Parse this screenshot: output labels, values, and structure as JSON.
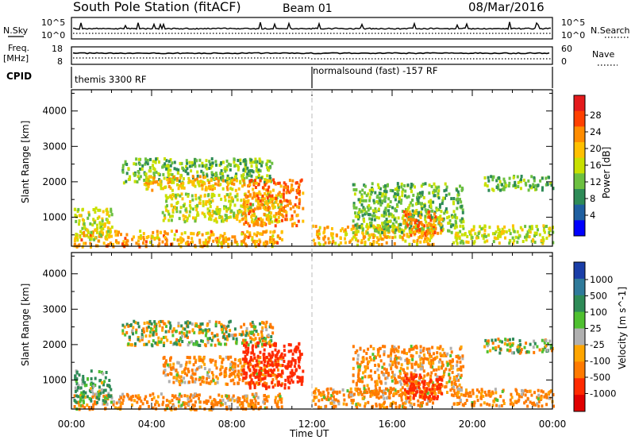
{
  "header": {
    "station": "South Pole Station (fitACF)",
    "beam": "Beam 01",
    "date": "08/Mar/2016"
  },
  "nsky_panel": {
    "left_label": "N.Sky",
    "left_ticks": [
      "10^5",
      "10^0"
    ],
    "right_label": "N.Search",
    "right_ticks": [
      "10^5",
      "10^0"
    ]
  },
  "freq_panel": {
    "left_label_1": "Freq.",
    "left_label_2": "[MHz]",
    "left_ticks": [
      "18",
      "8"
    ],
    "right_label": "Nave",
    "right_ticks": [
      "60",
      "0"
    ]
  },
  "cpid_panel": {
    "label": "CPID",
    "mode_1": "themis 3300 RF",
    "mode_2": "normalsound (fast) -157 RF"
  },
  "colorbars": {
    "power": {
      "label": "Power [dB]",
      "ticks": [
        "28",
        "24",
        "20",
        "16",
        "12",
        "8",
        "4"
      ],
      "colors": [
        "#e41a1c",
        "#ff4000",
        "#ff8c00",
        "#ffc000",
        "#c8e000",
        "#6cc040",
        "#2e8b57",
        "#1f5fa0",
        "#0000ff"
      ]
    },
    "velocity": {
      "label": "Velocity [m s^-1]",
      "ticks": [
        "1000",
        "500",
        "100",
        "25",
        "-25",
        "-100",
        "-500",
        "-1000"
      ],
      "colors": [
        "#1a3ea8",
        "#2f7a9a",
        "#2e8b57",
        "#4fc030",
        "#b0b0b0",
        "#ffa500",
        "#ff7a00",
        "#ff2a00",
        "#e00000"
      ]
    }
  },
  "axes": {
    "ylabel": "Slant Range [km]",
    "yticks": [
      "4000",
      "3000",
      "2000",
      "1000"
    ],
    "xticks": [
      "00:00",
      "04:00",
      "08:00",
      "12:00",
      "16:00",
      "20:00",
      "00:00"
    ],
    "xlabel": "Time UT"
  },
  "chart_data": {
    "type": "heatmap",
    "title": "South Pole Station (fitACF) Beam 01 08/Mar/2016",
    "xlabel": "Time UT",
    "ylabel": "Slant Range [km]",
    "xlim_hours": [
      0,
      24
    ],
    "ylim_km": [
      180,
      4600
    ],
    "panels": [
      {
        "name": "Power",
        "unit": "dB",
        "range": [
          0,
          32
        ],
        "regions": [
          {
            "t0": 0.1,
            "t1": 10.5,
            "r0": 200,
            "r1": 650,
            "value": 22
          },
          {
            "t0": 0.1,
            "t1": 2.0,
            "r0": 400,
            "r1": 1300,
            "value": 16
          },
          {
            "t0": 2.5,
            "t1": 10.0,
            "r0": 2000,
            "r1": 2700,
            "value": 12
          },
          {
            "t0": 3.5,
            "t1": 8.5,
            "r0": 1800,
            "r1": 2200,
            "value": 20
          },
          {
            "t0": 4.5,
            "t1": 10.5,
            "r0": 900,
            "r1": 1700,
            "value": 16
          },
          {
            "t0": 8.5,
            "t1": 11.5,
            "r0": 800,
            "r1": 2100,
            "value": 24
          },
          {
            "t0": 12.0,
            "t1": 18.0,
            "r0": 250,
            "r1": 800,
            "value": 20
          },
          {
            "t0": 14.0,
            "t1": 19.5,
            "r0": 600,
            "r1": 2000,
            "value": 12
          },
          {
            "t0": 16.5,
            "t1": 18.5,
            "r0": 500,
            "r1": 1200,
            "value": 24
          },
          {
            "t0": 20.5,
            "t1": 24.0,
            "r0": 1800,
            "r1": 2200,
            "value": 12
          },
          {
            "t0": 19.0,
            "t1": 24.0,
            "r0": 300,
            "r1": 800,
            "value": 16
          }
        ]
      },
      {
        "name": "Velocity",
        "unit": "m s^-1",
        "range": [
          -1000,
          1000
        ],
        "regions": [
          {
            "t0": 0.1,
            "t1": 10.5,
            "r0": 200,
            "r1": 650,
            "value": -100
          },
          {
            "t0": 0.1,
            "t1": 2.0,
            "r0": 400,
            "r1": 1300,
            "value": 100
          },
          {
            "t0": 2.5,
            "t1": 10.0,
            "r0": 2000,
            "r1": 2700,
            "value": 0
          },
          {
            "t0": 4.5,
            "t1": 10.5,
            "r0": 900,
            "r1": 1700,
            "value": -100
          },
          {
            "t0": 8.5,
            "t1": 11.5,
            "r0": 800,
            "r1": 2100,
            "value": -500
          },
          {
            "t0": 12.0,
            "t1": 18.0,
            "r0": 250,
            "r1": 800,
            "value": -100
          },
          {
            "t0": 14.0,
            "t1": 19.5,
            "r0": 600,
            "r1": 2000,
            "value": -100
          },
          {
            "t0": 16.5,
            "t1": 18.5,
            "r0": 500,
            "r1": 1200,
            "value": -500
          },
          {
            "t0": 20.5,
            "t1": 24.0,
            "r0": 1800,
            "r1": 2200,
            "value": 0
          },
          {
            "t0": 19.0,
            "t1": 24.0,
            "r0": 300,
            "r1": 800,
            "value": -100
          }
        ]
      }
    ],
    "cpid_change_hour": 12.0
  }
}
